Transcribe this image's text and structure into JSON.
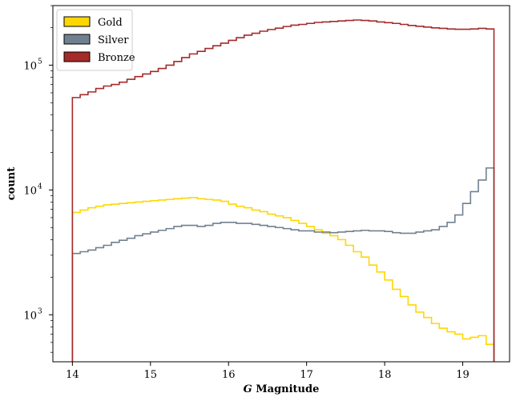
{
  "chart_data": {
    "type": "line",
    "title": "",
    "xlabel": "G Magnitude",
    "xlabel_italic_part": "G",
    "xlabel_rest": " Magnitude",
    "ylabel": "count",
    "xlim": [
      13.75,
      19.6
    ],
    "ylim": [
      420,
      300000
    ],
    "yscale": "log",
    "x_ticks": [
      14,
      15,
      16,
      17,
      18,
      19
    ],
    "x_tick_labels": [
      "14",
      "15",
      "16",
      "17",
      "18",
      "19"
    ],
    "y_ticks": [
      1000,
      10000,
      100000
    ],
    "y_tick_base": "10",
    "y_tick_exponents": [
      "3",
      "4",
      "5"
    ],
    "grid": false,
    "legend_position": "top-left",
    "bin_edges": [
      14.0,
      14.1,
      14.2,
      14.3,
      14.4,
      14.5,
      14.6,
      14.7,
      14.8,
      14.9,
      15.0,
      15.1,
      15.2,
      15.3,
      15.4,
      15.5,
      15.6,
      15.7,
      15.8,
      15.9,
      16.0,
      16.1,
      16.2,
      16.3,
      16.4,
      16.5,
      16.6,
      16.7,
      16.8,
      16.9,
      17.0,
      17.1,
      17.2,
      17.3,
      17.4,
      17.5,
      17.6,
      17.7,
      17.8,
      17.9,
      18.0,
      18.1,
      18.2,
      18.3,
      18.4,
      18.5,
      18.6,
      18.7,
      18.8,
      18.9,
      19.0,
      19.1,
      19.2,
      19.3,
      19.4
    ],
    "series": [
      {
        "name": "Gold",
        "color": "#ffd700",
        "edge": "#ffd700",
        "values": [
          6600,
          6900,
          7200,
          7400,
          7600,
          7700,
          7800,
          7900,
          8000,
          8100,
          8200,
          8300,
          8400,
          8500,
          8600,
          8700,
          8500,
          8400,
          8300,
          8100,
          7700,
          7400,
          7200,
          6900,
          6700,
          6400,
          6200,
          6000,
          5700,
          5400,
          5100,
          4800,
          4500,
          4300,
          4000,
          3600,
          3200,
          2900,
          2500,
          2200,
          1900,
          1600,
          1400,
          1200,
          1050,
          950,
          850,
          780,
          730,
          700,
          640,
          660,
          680,
          580
        ]
      },
      {
        "name": "Silver",
        "color": "#708090",
        "edge": "#4d5a66",
        "values": [
          3100,
          3200,
          3300,
          3450,
          3600,
          3800,
          3950,
          4100,
          4300,
          4450,
          4600,
          4750,
          4900,
          5100,
          5200,
          5200,
          5100,
          5200,
          5400,
          5500,
          5500,
          5400,
          5400,
          5300,
          5200,
          5100,
          5000,
          4900,
          4800,
          4700,
          4700,
          4600,
          4600,
          4550,
          4600,
          4650,
          4700,
          4750,
          4700,
          4700,
          4650,
          4550,
          4500,
          4500,
          4600,
          4700,
          4800,
          5100,
          5500,
          6300,
          7800,
          9700,
          12000,
          15000
        ]
      },
      {
        "name": "Bronze",
        "color": "#a52a2a",
        "edge": "#8b2323",
        "values": [
          55000,
          58000,
          61000,
          65000,
          68000,
          70000,
          73000,
          77000,
          81000,
          85000,
          89000,
          94000,
          100000,
          107000,
          115000,
          123000,
          129000,
          136000,
          143000,
          150000,
          158000,
          166000,
          174000,
          180000,
          187000,
          193000,
          198000,
          204000,
          209000,
          212000,
          216000,
          220000,
          222000,
          224000,
          226000,
          228000,
          230000,
          228000,
          226000,
          222000,
          219000,
          216000,
          212000,
          208000,
          205000,
          202000,
          199000,
          197000,
          195000,
          194000,
          194000,
          195000,
          197000,
          195000
        ]
      }
    ]
  }
}
